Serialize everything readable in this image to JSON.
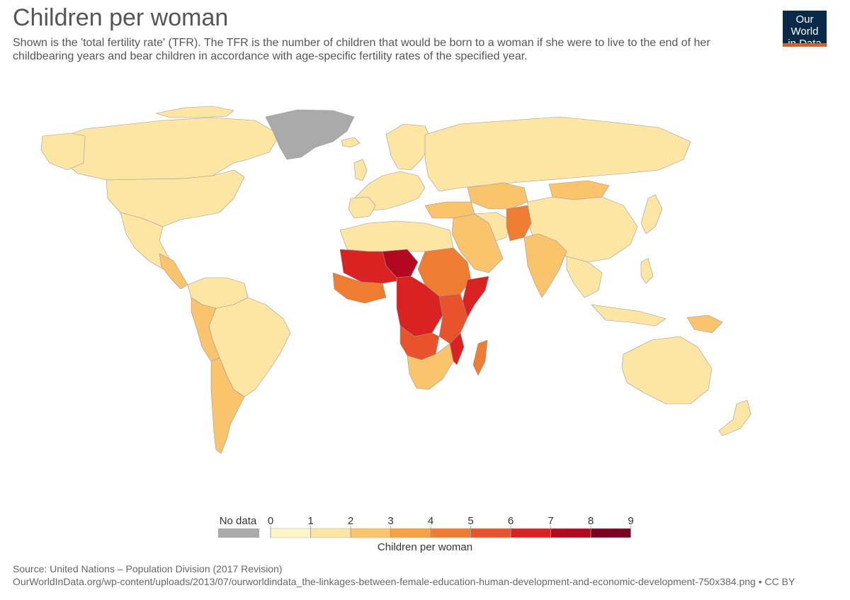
{
  "header": {
    "title": "Children per woman",
    "subtitle": "Shown is the 'total fertility rate' (TFR). The TFR is the number of children that would be born to a woman if she were to live to the end of her childbearing years and bear children in accordance with age-specific fertility rates of the specified year.",
    "logo_line1": "Our World",
    "logo_line2": "in Data"
  },
  "legend": {
    "no_data_label": "No data",
    "no_data_color": "#aaaaaa",
    "ticks": [
      "0",
      "1",
      "2",
      "3",
      "4",
      "5",
      "6",
      "7",
      "8",
      "9"
    ],
    "bin_colors": [
      "#fff5c8",
      "#fde6a3",
      "#f9c46b",
      "#f5a245",
      "#ef7d31",
      "#e8532b",
      "#d92221",
      "#b3081f",
      "#7b0021"
    ],
    "title": "Children per woman"
  },
  "footer": {
    "source": "Source: United Nations – Population Division (2017 Revision)",
    "url": "OurWorldInData.org/wp-content/uploads/2013/07/ourworldindata_the-linkages-between-female-education-human-development-and-economic-development-750x384.png • CC BY"
  }
}
